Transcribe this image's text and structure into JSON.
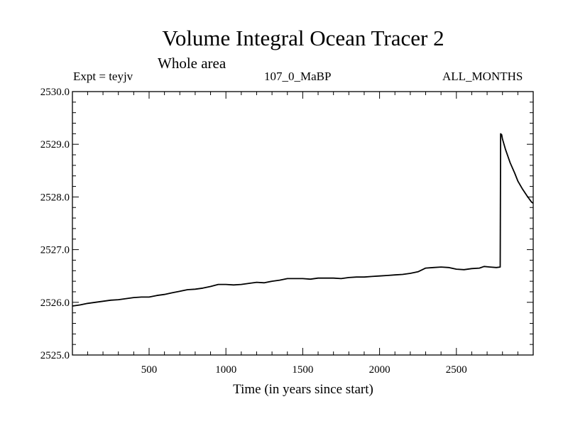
{
  "chart_data": {
    "type": "line",
    "title": "Volume Integral Ocean Tracer 2",
    "subtitle": "Whole area",
    "header_left": "Expt = teyjv",
    "header_center": "107_0_MaBP",
    "header_right": "ALL_MONTHS",
    "xlabel": "Time (in years since start)",
    "ylabel": "",
    "xlim": [
      1,
      3000
    ],
    "ylim": [
      2525.0,
      2530.0
    ],
    "xticks": [
      500,
      1000,
      1500,
      2000,
      2500
    ],
    "yticks": [
      "2525.0",
      "2526.0",
      "2527.0",
      "2528.0",
      "2529.0",
      "2530.0"
    ],
    "grid": false,
    "series": [
      {
        "color": "#000000",
        "x": [
          1,
          50,
          100,
          150,
          200,
          250,
          300,
          350,
          400,
          450,
          500,
          550,
          600,
          650,
          700,
          750,
          800,
          850,
          900,
          950,
          1000,
          1050,
          1100,
          1150,
          1200,
          1250,
          1300,
          1350,
          1400,
          1450,
          1500,
          1550,
          1600,
          1650,
          1700,
          1750,
          1800,
          1850,
          1900,
          1950,
          2000,
          2050,
          2100,
          2150,
          2200,
          2250,
          2300,
          2350,
          2400,
          2450,
          2500,
          2550,
          2600,
          2650,
          2680,
          2720,
          2760,
          2785,
          2788,
          2795,
          2800,
          2820,
          2850,
          2880,
          2900,
          2930,
          2960,
          2990,
          3000
        ],
        "values": [
          2525.93,
          2525.95,
          2525.98,
          2526.0,
          2526.02,
          2526.04,
          2526.05,
          2526.07,
          2526.09,
          2526.1,
          2526.1,
          2526.13,
          2526.15,
          2526.18,
          2526.21,
          2526.24,
          2526.25,
          2526.27,
          2526.3,
          2526.34,
          2526.34,
          2526.33,
          2526.34,
          2526.36,
          2526.38,
          2526.37,
          2526.4,
          2526.42,
          2526.45,
          2526.45,
          2526.45,
          2526.44,
          2526.46,
          2526.46,
          2526.46,
          2526.45,
          2526.47,
          2526.48,
          2526.48,
          2526.49,
          2526.5,
          2526.51,
          2526.52,
          2526.53,
          2526.55,
          2526.58,
          2526.65,
          2526.66,
          2526.67,
          2526.66,
          2526.63,
          2526.62,
          2526.64,
          2526.65,
          2526.68,
          2526.67,
          2526.66,
          2526.67,
          2529.2,
          2529.18,
          2529.1,
          2528.9,
          2528.65,
          2528.45,
          2528.3,
          2528.15,
          2528.02,
          2527.9,
          2527.88
        ]
      }
    ]
  }
}
